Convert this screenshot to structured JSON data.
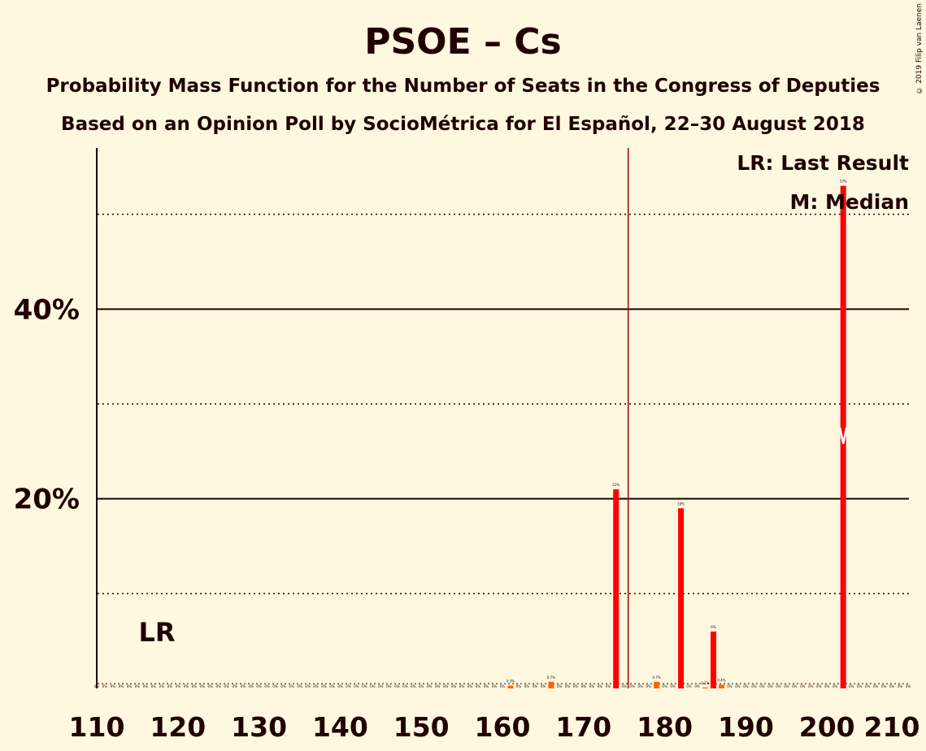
{
  "title": "PSOE – Cs",
  "subtitle": "Probability Mass Function for the Number of Seats in the Congress of Deputies",
  "subtitle2": "Based on an Opinion Poll by SocioMétrica for El Español, 22–30 August 2018",
  "copyright": "© 2019 Filip van Laenen",
  "legend": {
    "lr": "LR: Last Result",
    "median": "M: Median"
  },
  "markers": {
    "last_result_label": "LR",
    "last_result_seats": 116,
    "median_seats": 202,
    "majority_seats": 176
  },
  "colors": {
    "bar": "#ff0000",
    "bar_secondary": "#ff6600",
    "majority_line": "#aa0000",
    "background": "#fff8e1",
    "text": "#200000"
  },
  "chart_data": {
    "type": "bar",
    "xlim": [
      110,
      210
    ],
    "ylim": [
      0,
      57
    ],
    "x_ticks": [
      110,
      120,
      130,
      140,
      150,
      160,
      170,
      180,
      190,
      200,
      210
    ],
    "y_ticks_major": [
      20,
      40
    ],
    "y_tick_labels": [
      "20%",
      "40%"
    ],
    "y_gridlines_minor": [
      10,
      30,
      50
    ],
    "x": [
      161,
      166,
      174,
      179,
      182,
      185,
      186,
      187,
      202
    ],
    "values": [
      0.3,
      0.7,
      21,
      0.7,
      19,
      0.1,
      6,
      0.4,
      53
    ],
    "data_labels": [
      "0.3%",
      "0.7%",
      "21%",
      "0.7%",
      "19%",
      "0.1%",
      "6%",
      "0.4%",
      "53%"
    ],
    "zero_label": "0%"
  }
}
